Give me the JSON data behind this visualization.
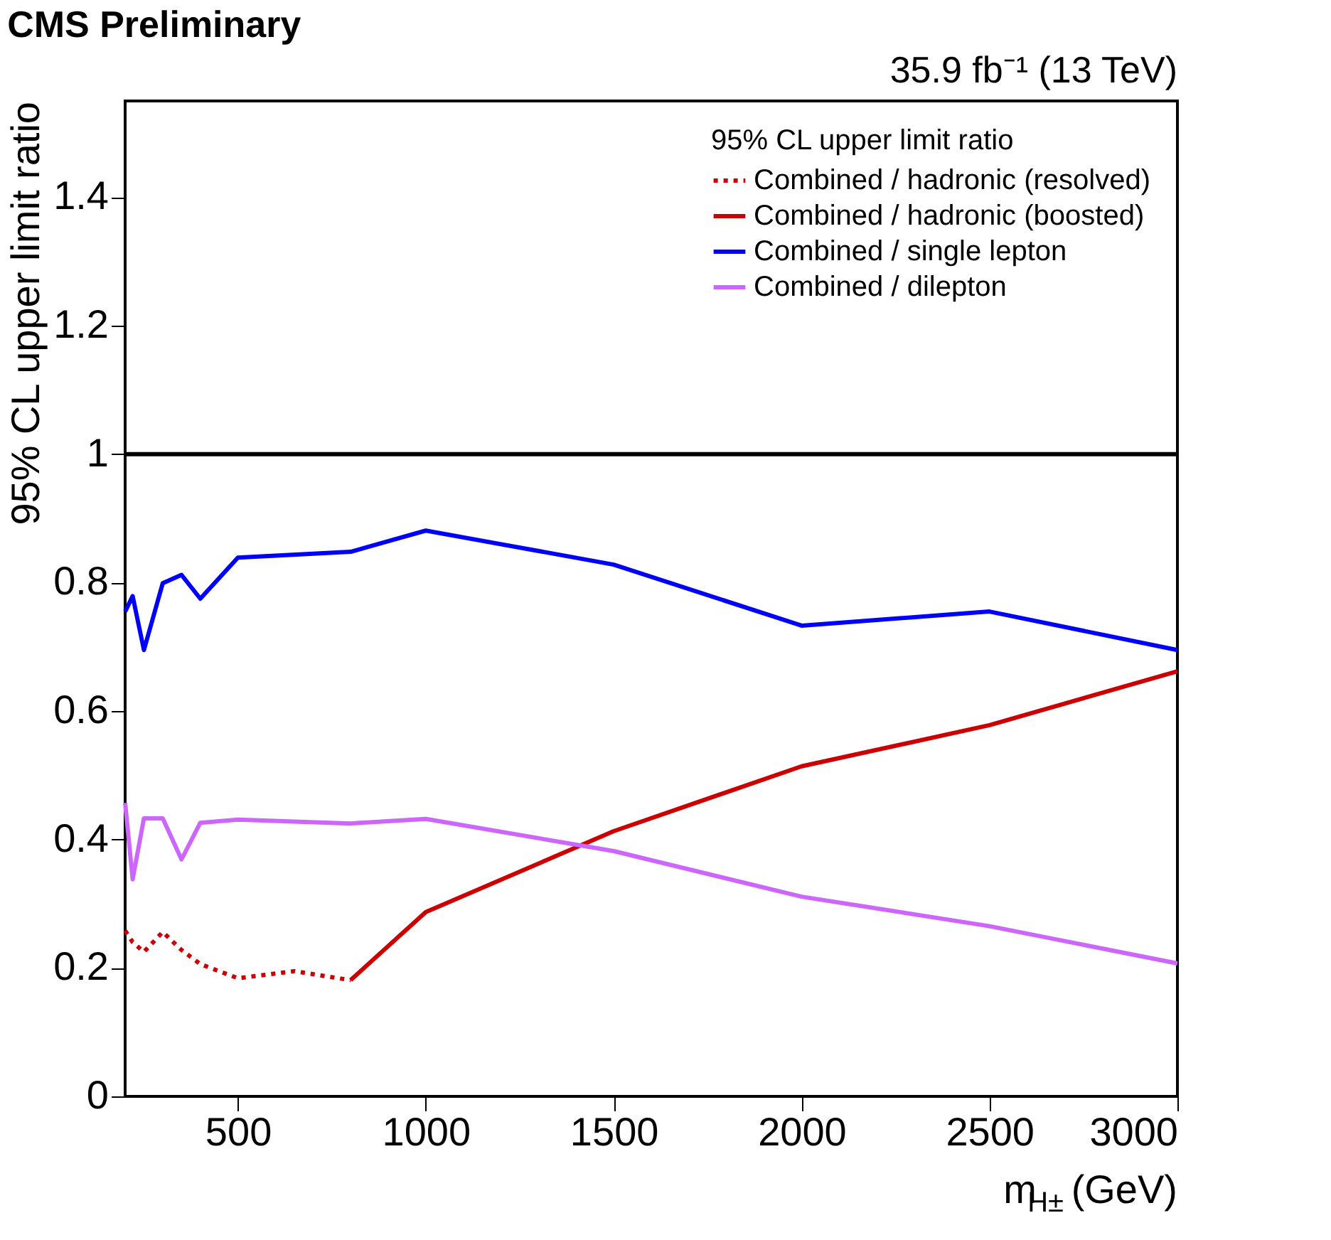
{
  "chart_data": {
    "type": "line",
    "title": "CMS Preliminary",
    "subtitle": "35.9 fb⁻¹ (13 TeV)",
    "xlabel": "m$_{H±}$ (GeV)",
    "ylabel": "95% CL upper limit ratio",
    "legend_title": "95% CL upper limit ratio",
    "xlim": [
      200,
      3000
    ],
    "xticks": [
      500,
      1000,
      1500,
      2000,
      2500,
      3000
    ],
    "ylim": [
      0,
      1.55
    ],
    "yticks": [
      0,
      0.2,
      0.4,
      0.6,
      0.8,
      1,
      1.2,
      1.4
    ],
    "grid": false,
    "legend": "top right",
    "ref_lines": [
      {
        "axis": "y",
        "value": 1,
        "color": "#000000",
        "line_style": "solid"
      }
    ],
    "series": [
      {
        "name": "Combined / hadronic (resolved)",
        "color": "#cc0000",
        "line_style": "dotted",
        "x": [
          200,
          220,
          250,
          300,
          350,
          400,
          500,
          650,
          800
        ],
        "values": [
          0.258,
          0.24,
          0.225,
          0.256,
          0.228,
          0.206,
          0.184,
          0.195,
          0.181
        ]
      },
      {
        "name": "Combined / hadronic (boosted)",
        "color": "#cc0000",
        "line_style": "solid",
        "x": [
          800,
          1000,
          1500,
          2000,
          2500,
          3000
        ],
        "values": [
          0.181,
          0.287,
          0.413,
          0.514,
          0.578,
          0.662
        ]
      },
      {
        "name": "Combined / single lepton",
        "color": "#0000ff",
        "line_style": "solid",
        "x": [
          200,
          220,
          250,
          300,
          350,
          400,
          500,
          800,
          1000,
          1500,
          2000,
          2500,
          3000
        ],
        "values": [
          0.755,
          0.779,
          0.695,
          0.799,
          0.812,
          0.775,
          0.839,
          0.848,
          0.881,
          0.828,
          0.733,
          0.755,
          0.695
        ]
      },
      {
        "name": "Combined / dilepton",
        "color": "#cc66ff",
        "line_style": "solid",
        "x": [
          200,
          220,
          250,
          300,
          350,
          400,
          500,
          800,
          1000,
          1500,
          2000,
          2500,
          3000
        ],
        "values": [
          0.457,
          0.338,
          0.433,
          0.433,
          0.369,
          0.426,
          0.431,
          0.425,
          0.432,
          0.382,
          0.311,
          0.265,
          0.207
        ]
      }
    ]
  }
}
